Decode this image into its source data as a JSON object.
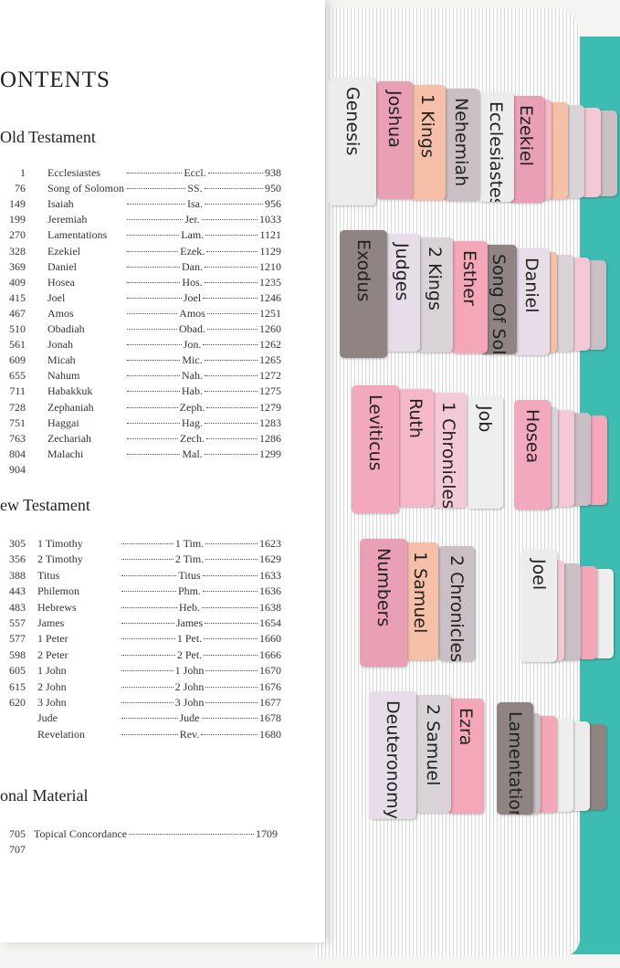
{
  "contents": {
    "title": "ONTENTS",
    "sections": [
      {
        "heading": "Old Testament",
        "left_pages": [
          1,
          76,
          149,
          199,
          270,
          328,
          369,
          409,
          415,
          467,
          510,
          561,
          609,
          655,
          711,
          728,
          751,
          763,
          804,
          904
        ],
        "entries": [
          {
            "book": "Ecclesiastes",
            "abbr": "Eccl.",
            "page": 938
          },
          {
            "book": "Song of Solomon",
            "abbr": "SS.",
            "page": 950
          },
          {
            "book": "Isaiah",
            "abbr": "Isa.",
            "page": 956
          },
          {
            "book": "Jeremiah",
            "abbr": "Jer.",
            "page": 1033
          },
          {
            "book": "Lamentations",
            "abbr": "Lam.",
            "page": 1121
          },
          {
            "book": "Ezekiel",
            "abbr": "Ezek.",
            "page": 1129
          },
          {
            "book": "Daniel",
            "abbr": "Dan.",
            "page": 1210
          },
          {
            "book": "Hosea",
            "abbr": "Hos.",
            "page": 1235
          },
          {
            "book": "Joel",
            "abbr": "Joel",
            "page": 1246
          },
          {
            "book": "Amos",
            "abbr": "Amos",
            "page": 1251
          },
          {
            "book": "Obadiah",
            "abbr": "Obad.",
            "page": 1260
          },
          {
            "book": "Jonah",
            "abbr": "Jon.",
            "page": 1262
          },
          {
            "book": "Micah",
            "abbr": "Mic.",
            "page": 1265
          },
          {
            "book": "Nahum",
            "abbr": "Nah.",
            "page": 1272
          },
          {
            "book": "Habakkuk",
            "abbr": "Hab.",
            "page": 1275
          },
          {
            "book": "Zephaniah",
            "abbr": "Zeph.",
            "page": 1279
          },
          {
            "book": "Haggai",
            "abbr": "Hag.",
            "page": 1283
          },
          {
            "book": "Zechariah",
            "abbr": "Zech.",
            "page": 1286
          },
          {
            "book": "Malachi",
            "abbr": "Mal.",
            "page": 1299
          }
        ]
      },
      {
        "heading": "ew Testament",
        "left_pages": [
          305,
          356,
          388,
          443,
          483,
          557,
          577,
          598,
          605,
          615,
          620
        ],
        "entries": [
          {
            "book": "1 Timothy",
            "abbr": "1 Tim.",
            "page": 1623
          },
          {
            "book": "2 Timothy",
            "abbr": "2 Tim.",
            "page": 1629
          },
          {
            "book": "Titus",
            "abbr": "Titus",
            "page": 1633
          },
          {
            "book": "Philemon",
            "abbr": "Phm.",
            "page": 1636
          },
          {
            "book": "Hebrews",
            "abbr": "Heb.",
            "page": 1638
          },
          {
            "book": "James",
            "abbr": "James",
            "page": 1654
          },
          {
            "book": "1 Peter",
            "abbr": "1 Pet.",
            "page": 1660
          },
          {
            "book": "2 Peter",
            "abbr": "2 Pet.",
            "page": 1666
          },
          {
            "book": "1 John",
            "abbr": "1 John",
            "page": 1670
          },
          {
            "book": "2 John",
            "abbr": "2 John",
            "page": 1676
          },
          {
            "book": "3 John",
            "abbr": "3 John",
            "page": 1677
          },
          {
            "book": "Jude",
            "abbr": "Jude",
            "page": 1678
          },
          {
            "book": "Revelation",
            "abbr": "Rev.",
            "page": 1680
          }
        ]
      },
      {
        "heading": "onal Material",
        "left_pages": [
          705,
          707
        ],
        "entries": [
          {
            "book": "Topical Concordance",
            "abbr": "",
            "page": 1709
          }
        ]
      }
    ]
  },
  "tabs": [
    [
      "Genesis",
      "Joshua",
      "1 Kings",
      "Nehemiah",
      "Ecclesiastes",
      "Ezekiel"
    ],
    [
      "Exodus",
      "Judges",
      "2 Kings",
      "Esther",
      "Song Of Solomon",
      "Daniel"
    ],
    [
      "Leviticus",
      "Ruth",
      "1 Chronicles",
      "Job",
      "Hosea"
    ],
    [
      "Numbers",
      "1 Samuel",
      "2 Chronicles",
      "Joel"
    ],
    [
      "Deuteronomy",
      "2 Samuel",
      "Ezra",
      "Lamentations"
    ]
  ]
}
